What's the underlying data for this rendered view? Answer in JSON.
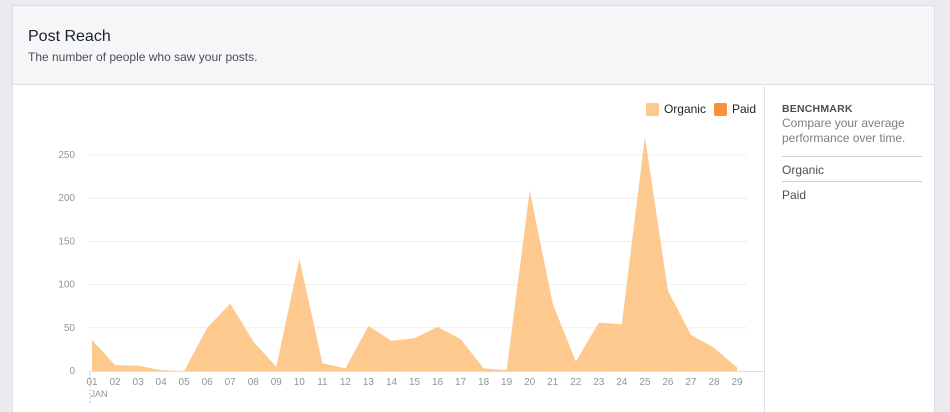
{
  "header": {
    "title": "Post Reach",
    "subtitle": "The number of people who saw your posts."
  },
  "legend": {
    "organic_label": "Organic",
    "paid_label": "Paid",
    "organic_color": "#fec98f",
    "paid_color": "#f7923a"
  },
  "benchmark": {
    "title": "BENCHMARK",
    "description": "Compare your average performance over time.",
    "items": [
      "Organic",
      "Paid"
    ]
  },
  "chart_data": {
    "type": "area",
    "x": [
      "01",
      "02",
      "03",
      "04",
      "05",
      "06",
      "07",
      "08",
      "09",
      "10",
      "11",
      "12",
      "13",
      "14",
      "15",
      "16",
      "17",
      "18",
      "19",
      "20",
      "21",
      "22",
      "23",
      "24",
      "25",
      "26",
      "27",
      "28",
      "29"
    ],
    "month_label": "JAN",
    "yticks": [
      0,
      50,
      100,
      150,
      200,
      250
    ],
    "ylim": [
      0,
      250
    ],
    "grid": true,
    "series": [
      {
        "name": "Organic",
        "color": "#fec98f",
        "values": [
          36,
          7,
          6,
          1,
          0,
          50,
          78,
          34,
          5,
          130,
          9,
          3,
          52,
          35,
          38,
          51,
          37,
          3,
          1,
          209,
          78,
          11,
          56,
          54,
          271,
          93,
          42,
          27,
          4
        ]
      }
    ]
  }
}
